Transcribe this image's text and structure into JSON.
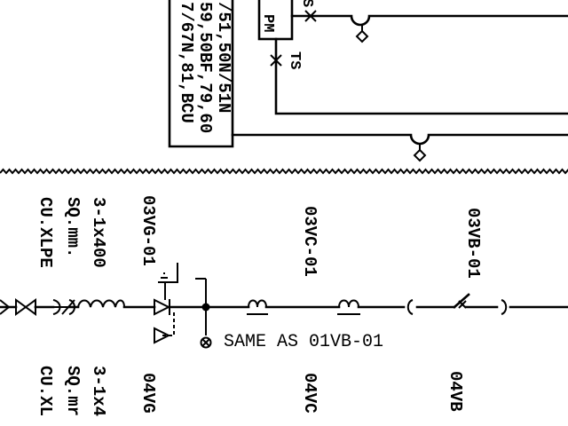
{
  "relay_box": {
    "lines": [
      "/51,50N/51N",
      "59,50BF,79,60",
      "7/67N,81,BCU"
    ]
  },
  "upper_labels": {
    "pm_box": "PM",
    "ts": "TS",
    "s_label": "S"
  },
  "cable_left": {
    "spec_lines": [
      "3-1x400",
      "SQ.mm.",
      "CU.XLPE"
    ]
  },
  "cable_left_bottom": {
    "spec_lines": [
      "3-1x4",
      "SQ.mr",
      "CU.XL"
    ]
  },
  "tags_top": {
    "vg": "03VG-01",
    "vc": "03VC-01",
    "vb": "03VB-01"
  },
  "tags_bottom": {
    "vg": "04VG",
    "vc": "04VC",
    "vb": "04VB"
  },
  "note": "SAME AS 01VB-01"
}
